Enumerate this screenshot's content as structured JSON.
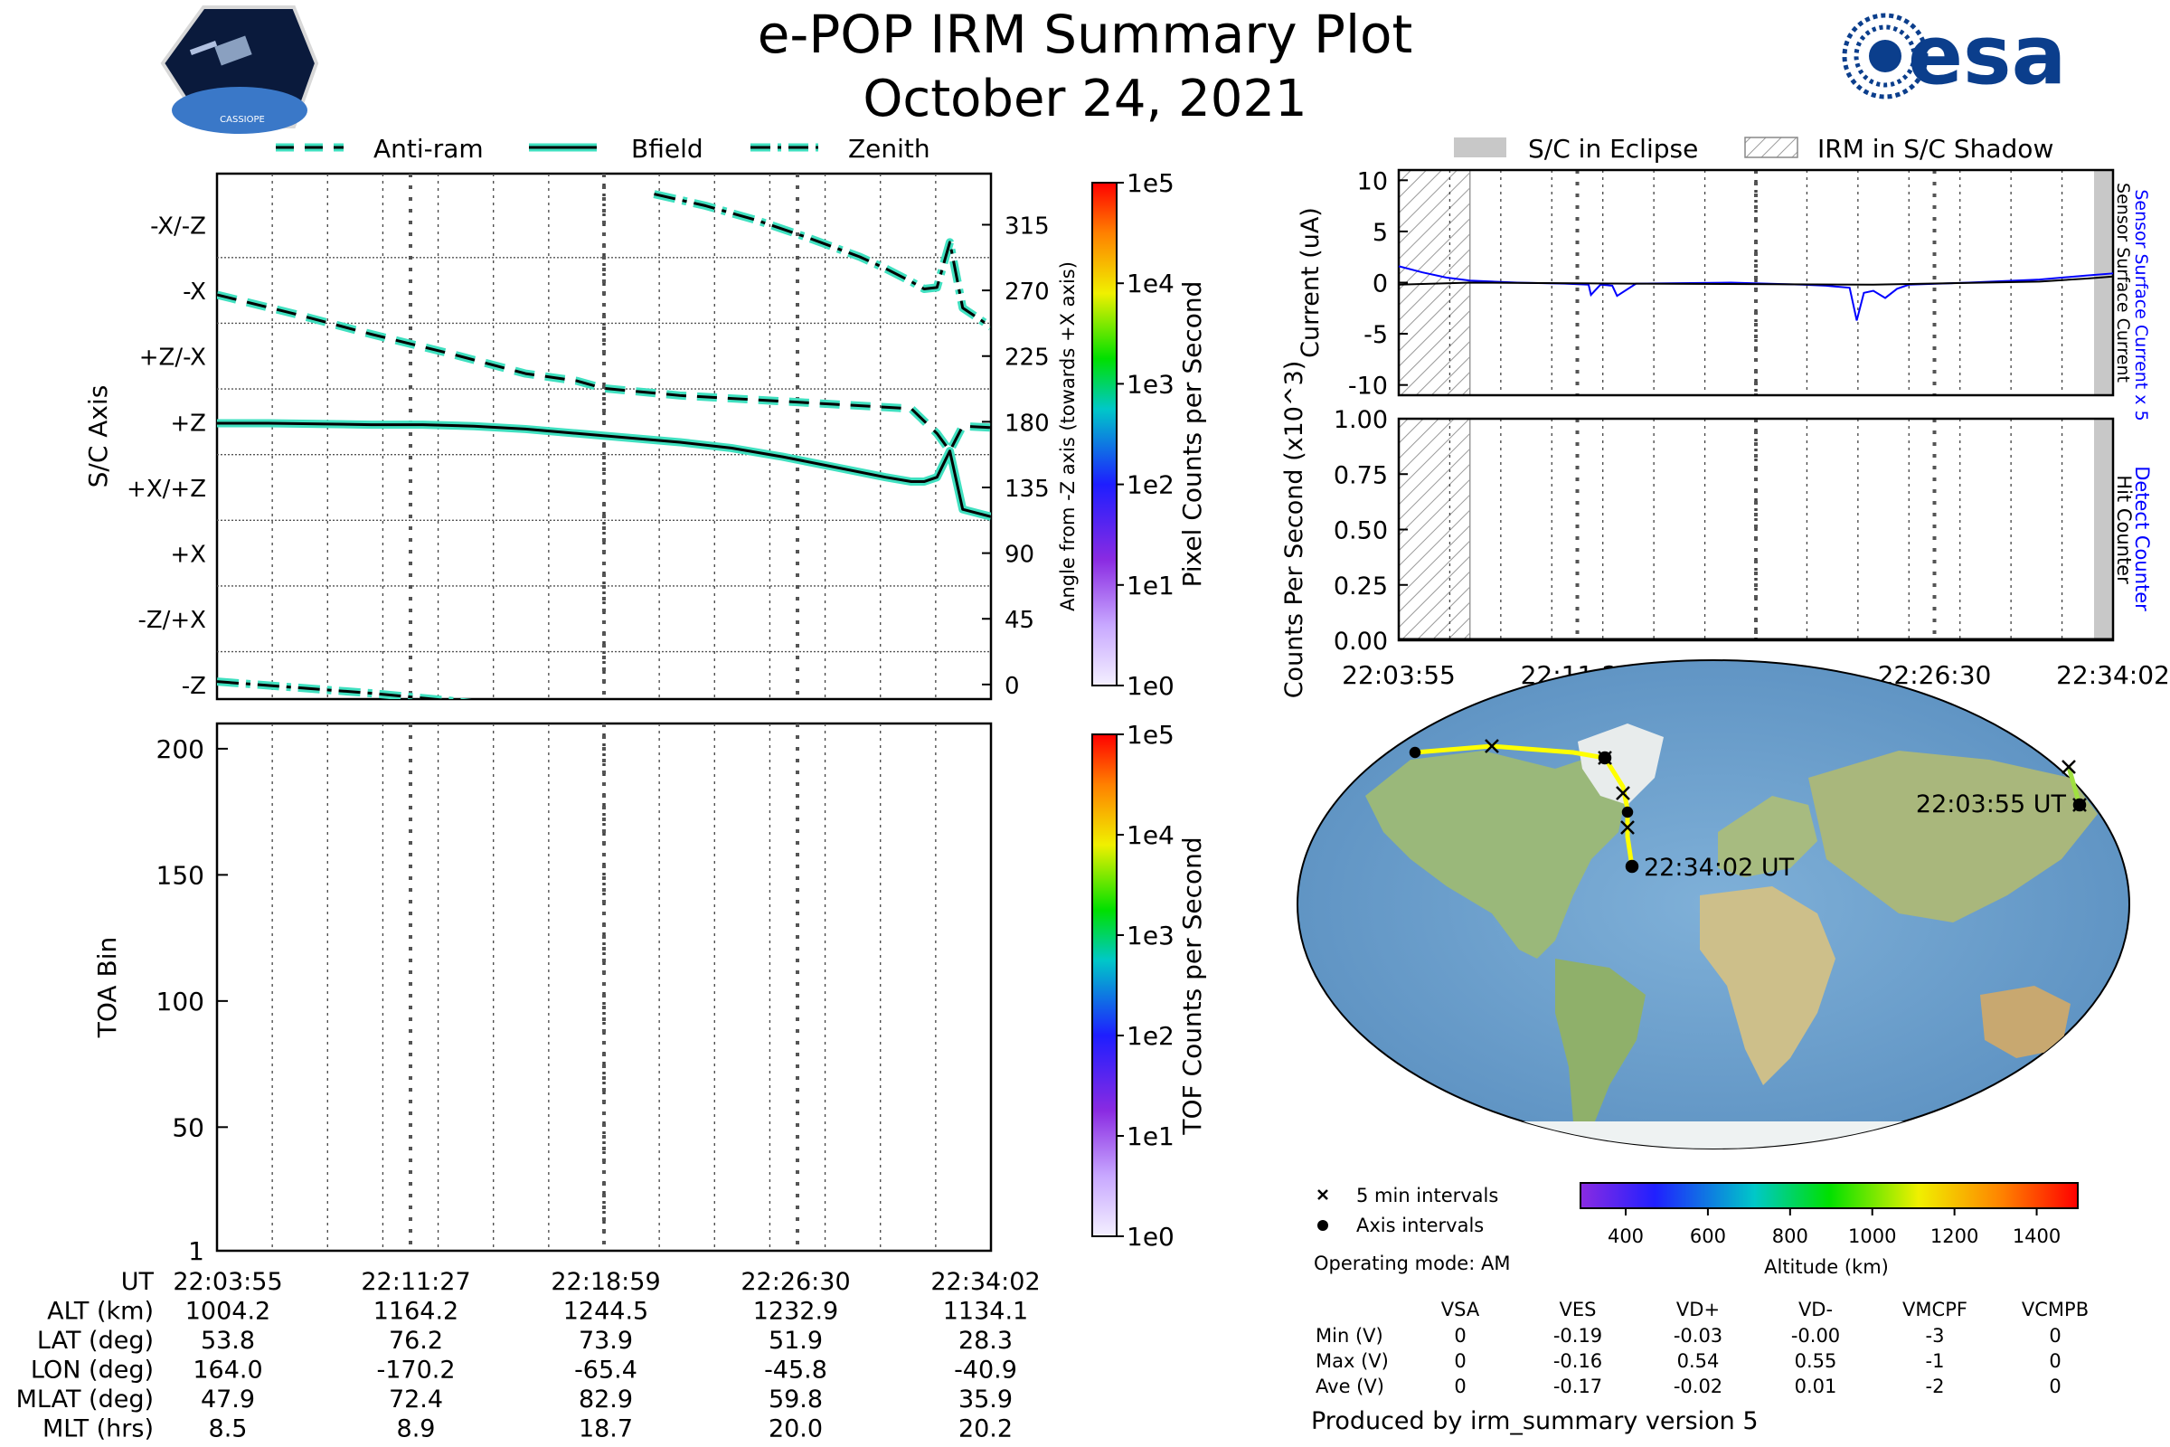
{
  "header": {
    "title": "e-POP IRM Summary Plot",
    "date": "October 24, 2021",
    "left_logo_text": "CASSIOPE",
    "right_logo_text": "esa"
  },
  "legend_top": [
    "Anti-ram",
    "Bfield",
    "Zenith"
  ],
  "legend_right": [
    "S/C in Eclipse",
    "IRM in S/C Shadow"
  ],
  "time_ticks": [
    "22:03:55",
    "22:11:27",
    "22:18:59",
    "22:26:30",
    "22:34:02"
  ],
  "colors": {
    "trace_fill": "#40e0c0",
    "sensor_current": "#0000ff",
    "eclipse": "#c8c8c8",
    "orbit_track": "#ffff00",
    "colorbar_low": "#f0f0ff",
    "colorbar_high": "#ff0000"
  },
  "bottom_table": {
    "row_labels": [
      "UT",
      "ALT (km)",
      "LAT (deg)",
      "LON (deg)",
      "MLAT (deg)",
      "MLT (hrs)"
    ],
    "columns": [
      [
        "22:03:55",
        "1004.2",
        "53.8",
        "164.0",
        "47.9",
        "8.5"
      ],
      [
        "22:11:27",
        "1164.2",
        "76.2",
        "-170.2",
        "72.4",
        "8.9"
      ],
      [
        "22:18:59",
        "1244.5",
        "73.9",
        "-65.4",
        "82.9",
        "18.7"
      ],
      [
        "22:26:30",
        "1232.9",
        "51.9",
        "-45.8",
        "59.8",
        "20.0"
      ],
      [
        "22:34:02",
        "1134.1",
        "28.3",
        "-40.9",
        "35.9",
        "20.2"
      ]
    ]
  },
  "map": {
    "start_label": "22:03:55 UT",
    "end_label": "22:34:02 UT",
    "legend_5min": "5 min intervals",
    "legend_axis": "Axis intervals",
    "operating_mode": "Operating mode: AM",
    "altitude_colorbar": {
      "label": "Altitude (km)",
      "ticks": [
        "400",
        "600",
        "800",
        "1000",
        "1200",
        "1400"
      ]
    }
  },
  "voltage_table": {
    "headers": [
      "VSA",
      "VES",
      "VD+",
      "VD-",
      "VMCPF",
      "VCMPB"
    ],
    "rows": [
      {
        "label": "Min (V)",
        "values": [
          "0",
          "-0.19",
          "-0.03",
          "-0.00",
          "-3",
          "0"
        ]
      },
      {
        "label": "Max (V)",
        "values": [
          "0",
          "-0.16",
          "0.54",
          "0.55",
          "-1",
          "0"
        ]
      },
      {
        "label": "Ave (V)",
        "values": [
          "0",
          "-0.17",
          "-0.02",
          "0.01",
          "-2",
          "0"
        ]
      }
    ]
  },
  "footer": "Produced by irm_summary version 5",
  "chart_data": [
    {
      "type": "line",
      "title": "",
      "xlabel": "",
      "ylabel": "S/C Axis",
      "ylabel_right": "Angle from -Z axis (towards +X axis)",
      "ylim": [
        -10,
        350
      ],
      "yticks_right": [
        0,
        45,
        90,
        135,
        180,
        225,
        270,
        315
      ],
      "yticks_left_labels": [
        "-Z",
        "-Z/+X",
        "+X",
        "+X/+Z",
        "+Z",
        "+Z/-X",
        "-X",
        "-X/-Z"
      ],
      "colorbar": {
        "label": "Pixel Counts per Second",
        "ticks": [
          "1e0",
          "1e1",
          "1e2",
          "1e3",
          "1e4",
          "1e5"
        ]
      },
      "series": [
        {
          "name": "Anti-ram",
          "style": "dashed",
          "x": [
            0,
            3,
            6,
            9,
            12,
            14,
            15,
            18,
            21,
            24,
            26,
            27,
            28,
            28.5,
            29,
            30.1
          ],
          "y": [
            267,
            254,
            240,
            227,
            213,
            208,
            203,
            198,
            195,
            192,
            190,
            189,
            172,
            160,
            177,
            176
          ]
        },
        {
          "name": "Bfield",
          "style": "solid",
          "x": [
            0,
            2,
            4,
            6,
            8,
            10,
            12,
            14,
            16,
            18,
            20,
            22,
            24,
            26,
            27,
            27.5,
            28,
            28.5,
            29,
            30.1
          ],
          "y": [
            179,
            179,
            178.5,
            178,
            178,
            177,
            175,
            172,
            169,
            166,
            162,
            156,
            149,
            142,
            139,
            139,
            142,
            160,
            120,
            115
          ]
        },
        {
          "name": "Zenith",
          "style": "dashdot",
          "x": [
            17,
            19,
            21,
            23,
            25,
            26,
            27,
            27.5,
            28,
            28.5,
            29,
            30.1
          ],
          "y": [
            336,
            328,
            318,
            306,
            293,
            285,
            276,
            271,
            272,
            303,
            258,
            245
          ]
        },
        {
          "name": "Zenith",
          "style": "dashdot",
          "x": [
            0,
            3,
            6,
            9,
            12,
            15,
            17
          ],
          "y": [
            2,
            -2,
            -6,
            -11,
            -17,
            -25,
            -30
          ]
        }
      ]
    },
    {
      "type": "heatmap",
      "title": "",
      "xlabel": "",
      "ylabel": "TOA Bin",
      "ylim": [
        1,
        210
      ],
      "yticks": [
        1,
        50,
        100,
        150,
        200
      ],
      "colorbar": {
        "label": "TOF Counts per Second",
        "ticks": [
          "1e0",
          "1e1",
          "1e2",
          "1e3",
          "1e4",
          "1e5"
        ]
      },
      "values": []
    },
    {
      "type": "line",
      "title": "",
      "xlabel": "",
      "ylabel": "Current (uA)",
      "ylim": [
        -11,
        11
      ],
      "yticks": [
        -10,
        -5,
        0,
        5,
        10
      ],
      "right_labels": [
        "Sensor Surface Current x 5",
        "Sensor Surface Current"
      ],
      "eclipse_spans": [
        [
          29.3,
          30.1
        ]
      ],
      "shadow_spans": [
        [
          0,
          3
        ]
      ],
      "series": [
        {
          "name": "Sensor Surface Current x 5",
          "color": "#0000ff",
          "x": [
            0,
            1,
            2,
            3,
            5,
            7,
            8,
            8.1,
            8.5,
            9,
            9.2,
            10,
            14,
            17,
            18,
            19,
            19.3,
            19.6,
            20,
            20.5,
            21,
            21.5,
            24,
            27,
            29,
            30.1
          ],
          "y": [
            1.6,
            1.0,
            0.5,
            0.2,
            0.0,
            -0.1,
            -0.2,
            -1.2,
            -0.2,
            -0.3,
            -1.3,
            -0.1,
            0.0,
            -0.2,
            -0.3,
            -0.5,
            -3.7,
            -1.0,
            -0.8,
            -1.5,
            -0.6,
            -0.2,
            0.0,
            0.3,
            0.7,
            0.9
          ]
        },
        {
          "name": "Sensor Surface Current",
          "color": "#000000",
          "x": [
            0,
            3,
            10,
            20,
            27,
            29,
            30.1
          ],
          "y": [
            -0.2,
            0.0,
            -0.1,
            -0.2,
            0.1,
            0.4,
            0.6
          ]
        }
      ]
    },
    {
      "type": "line",
      "title": "",
      "xlabel": "",
      "ylabel": "Counts Per Second (x10^3)",
      "ylim": [
        0,
        1
      ],
      "yticks": [
        0.0,
        0.25,
        0.5,
        0.75,
        1.0
      ],
      "right_labels": [
        "Detect Counter",
        "Hit Counter"
      ],
      "eclipse_spans": [
        [
          29.3,
          30.1
        ]
      ],
      "shadow_spans": [
        [
          0,
          3
        ]
      ],
      "series": [
        {
          "name": "Detect Counter",
          "color": "#0000ff",
          "x": [
            0,
            30.1
          ],
          "y": [
            0,
            0
          ]
        },
        {
          "name": "Hit Counter",
          "color": "#000000",
          "x": [
            0,
            30.1
          ],
          "y": [
            0,
            0
          ]
        }
      ]
    }
  ]
}
